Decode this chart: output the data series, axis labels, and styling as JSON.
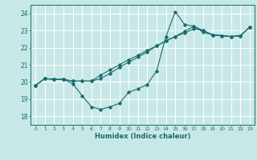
{
  "xlabel": "Humidex (Indice chaleur)",
  "bg_color": "#c8e8e8",
  "line_color": "#1a6b6b",
  "grid_color": "#ffffff",
  "xlim": [
    -0.5,
    23.5
  ],
  "ylim": [
    17.5,
    24.5
  ],
  "yticks": [
    18,
    19,
    20,
    21,
    22,
    23,
    24
  ],
  "xticks": [
    0,
    1,
    2,
    3,
    4,
    5,
    6,
    7,
    8,
    9,
    10,
    11,
    12,
    13,
    14,
    15,
    16,
    17,
    18,
    19,
    20,
    21,
    22,
    23
  ],
  "line1_x": [
    0,
    1,
    2,
    3,
    4,
    5,
    6,
    7,
    8,
    9,
    10,
    11,
    12,
    13,
    14,
    15,
    16,
    17,
    18,
    19,
    20,
    21,
    22,
    23
  ],
  "line1_y": [
    19.8,
    20.2,
    20.15,
    20.15,
    19.9,
    19.2,
    18.55,
    18.4,
    18.55,
    18.75,
    19.4,
    19.6,
    19.85,
    20.65,
    22.65,
    24.1,
    23.35,
    23.25,
    23.0,
    22.75,
    22.7,
    22.65,
    22.7,
    23.2
  ],
  "line2_x": [
    0,
    1,
    2,
    3,
    4,
    5,
    6,
    7,
    8,
    9,
    10,
    11,
    12,
    13,
    14,
    15,
    16,
    17,
    18,
    19,
    20,
    21,
    22,
    23
  ],
  "line2_y": [
    19.8,
    20.2,
    20.15,
    20.15,
    20.05,
    20.05,
    20.05,
    20.4,
    20.7,
    21.0,
    21.3,
    21.55,
    21.85,
    22.1,
    22.4,
    22.65,
    22.85,
    23.1,
    23.0,
    22.75,
    22.7,
    22.65,
    22.7,
    23.2
  ],
  "line3_x": [
    0,
    1,
    2,
    3,
    4,
    5,
    6,
    7,
    8,
    9,
    10,
    11,
    12,
    13,
    14,
    15,
    16,
    17,
    18,
    19,
    20,
    21,
    22,
    23
  ],
  "line3_y": [
    19.8,
    20.2,
    20.15,
    20.15,
    20.05,
    20.05,
    20.05,
    20.2,
    20.5,
    20.85,
    21.15,
    21.45,
    21.75,
    22.1,
    22.4,
    22.65,
    22.95,
    23.25,
    22.9,
    22.75,
    22.7,
    22.65,
    22.7,
    23.2
  ]
}
